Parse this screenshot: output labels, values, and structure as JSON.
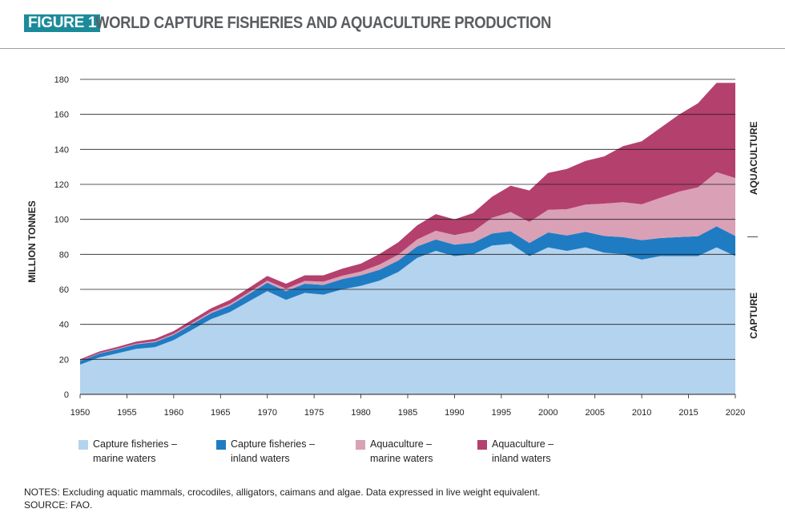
{
  "header": {
    "badge": "FIGURE 1",
    "title": "WORLD CAPTURE FISHERIES AND AQUACULTURE PRODUCTION"
  },
  "notes": {
    "line1": "NOTES: Excluding aquatic mammals, crocodiles, alligators, caimans and algae. Data expressed in live weight equivalent.",
    "line2": "SOURCE: FAO."
  },
  "colors": {
    "capture_marine": "#b4d3ee",
    "capture_inland": "#1f7cc3",
    "aqua_marine": "#d9a0b6",
    "aqua_inland": "#b4406e",
    "badge": "#1b8b9a",
    "title": "#5b5e61"
  },
  "chart_data": {
    "type": "area",
    "stacked": true,
    "ylabel": "MILLION TONNES",
    "ylim": [
      0,
      180
    ],
    "yticks": [
      0,
      20,
      40,
      60,
      80,
      100,
      120,
      140,
      160,
      180
    ],
    "xlim": [
      1950,
      2020
    ],
    "xticks": [
      1950,
      1955,
      1960,
      1965,
      1970,
      1975,
      1980,
      1985,
      1990,
      1995,
      2000,
      2005,
      2010,
      2015,
      2020
    ],
    "grid": "horizontal",
    "legend_position": "bottom",
    "right_labels": [
      "AQUACULTURE",
      "CAPTURE"
    ],
    "x": [
      1950,
      1952,
      1954,
      1956,
      1958,
      1960,
      1962,
      1964,
      1966,
      1968,
      1970,
      1972,
      1974,
      1976,
      1978,
      1980,
      1982,
      1984,
      1986,
      1988,
      1990,
      1992,
      1994,
      1996,
      1998,
      2000,
      2002,
      2004,
      2006,
      2008,
      2010,
      2012,
      2014,
      2016,
      2018,
      2020
    ],
    "series": [
      {
        "name": "Capture fisheries – marine waters",
        "values": [
          17,
          21,
          23.5,
          26,
          27,
          31,
          37,
          43,
          47,
          53,
          59,
          54,
          58,
          57,
          60,
          62,
          65,
          70,
          78,
          82,
          79,
          80,
          85,
          86,
          79,
          84,
          82,
          84,
          81,
          80,
          77,
          79,
          79,
          79,
          84,
          79
        ]
      },
      {
        "name": "Capture fisheries – inland waters",
        "values": [
          2.0,
          2.2,
          2.3,
          2.6,
          2.8,
          3.0,
          3.2,
          3.4,
          3.7,
          4.2,
          4.8,
          5.0,
          5.2,
          5.5,
          5.8,
          6.0,
          6.2,
          6.5,
          6.5,
          6.5,
          6.5,
          6.6,
          6.9,
          7.2,
          7.5,
          8.5,
          8.8,
          8.9,
          9.5,
          9.8,
          11.1,
          10.3,
          10.9,
          11.3,
          12.0,
          11.5
        ]
      },
      {
        "name": "Aquaculture – marine waters",
        "values": [
          0.2,
          0.3,
          0.3,
          0.4,
          0.5,
          0.6,
          0.7,
          0.8,
          0.9,
          1.0,
          1.2,
          1.4,
          1.6,
          1.9,
          2.0,
          2.2,
          3.0,
          3.4,
          4.0,
          5.0,
          5.5,
          6.5,
          9.0,
          11.0,
          12.0,
          13.0,
          15.0,
          15.5,
          18.5,
          20.0,
          20.5,
          23.0,
          26.0,
          28.0,
          31.0,
          33.1
        ]
      },
      {
        "name": "Aquaculture – inland waters",
        "values": [
          0.8,
          0.9,
          1.0,
          1.2,
          1.4,
          1.6,
          1.8,
          2.0,
          2.3,
          2.5,
          2.7,
          2.8,
          3.2,
          3.6,
          4.0,
          4.5,
          6.0,
          7.0,
          8.0,
          9.5,
          9.0,
          10.5,
          12.0,
          15.0,
          18.0,
          21.0,
          23.0,
          25.0,
          27.0,
          32.0,
          36.0,
          40.0,
          44.0,
          48.0,
          51.0,
          54.4
        ]
      }
    ]
  }
}
